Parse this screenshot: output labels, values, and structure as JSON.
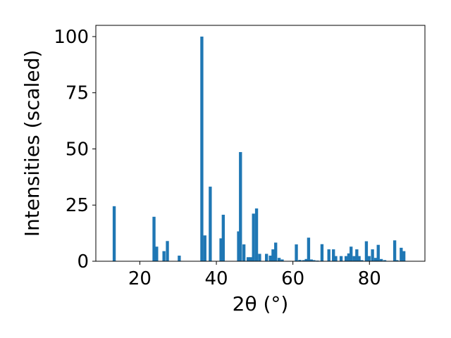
{
  "chart_data": {
    "type": "bar",
    "title": "",
    "xlabel": "2θ (°)",
    "ylabel": "Intensities (scaled)",
    "xlim": [
      8.5,
      94.5
    ],
    "ylim": [
      0,
      105
    ],
    "xticks": [
      20,
      40,
      60,
      80
    ],
    "yticks": [
      0,
      25,
      50,
      75,
      100
    ],
    "grid": false,
    "bar_width": 0.8,
    "bar_color": "#1f77b4",
    "series": [
      {
        "x": [
          13.3,
          23.7,
          24.4,
          26.3,
          27.2,
          30.3,
          36.2,
          37.0,
          38.4,
          41.2,
          41.8,
          45.8,
          46.3,
          47.2,
          48.3,
          49.0,
          49.7,
          50.5,
          51.3,
          53.1,
          54.1,
          54.8,
          55.5,
          56.4,
          57.2,
          60.9,
          61.8,
          62.8,
          63.5,
          64.1,
          64.8,
          65.5,
          66.4,
          67.6,
          69.4,
          70.6,
          71.2,
          72.6,
          73.9,
          74.6,
          75.2,
          76.0,
          76.7,
          77.3,
          78.0,
          79.2,
          79.9,
          80.8,
          81.6,
          82.3,
          83.1,
          84.0,
          86.6,
          87.2,
          88.3,
          89.0
        ],
        "values": [
          24.5,
          19.8,
          6.5,
          4.5,
          9.0,
          2.5,
          100.0,
          11.5,
          33.2,
          10.2,
          20.7,
          13.3,
          48.6,
          7.5,
          1.8,
          1.8,
          21.2,
          23.5,
          3.3,
          3.3,
          2.5,
          5.3,
          8.3,
          1.5,
          0.8,
          7.5,
          0.6,
          0.5,
          1.0,
          10.5,
          0.8,
          0.5,
          0.3,
          7.6,
          5.3,
          5.3,
          2.3,
          2.3,
          2.3,
          3.5,
          6.5,
          2.3,
          5.3,
          2.3,
          0.5,
          8.9,
          2.3,
          5.3,
          1.5,
          7.3,
          1.0,
          0.5,
          9.3,
          0.5,
          6.0,
          4.5
        ]
      }
    ]
  }
}
